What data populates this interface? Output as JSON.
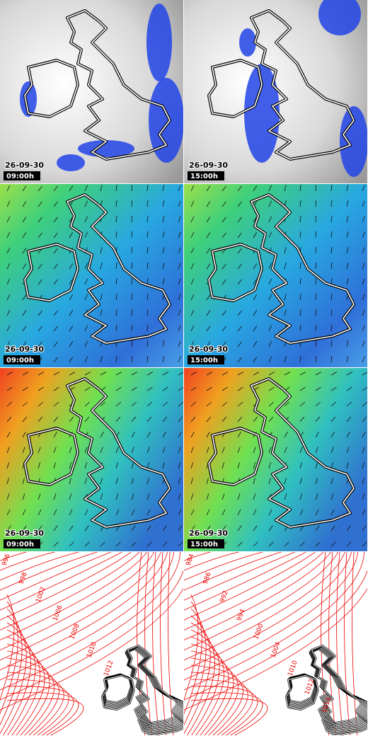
{
  "panels": [
    {
      "date": "26-09-30",
      "time": "09:00h"
    },
    {
      "date": "26-09-30",
      "time": "15:00h"
    },
    {
      "date": "26-09-30",
      "time": "09:00h"
    },
    {
      "date": "26-09-30",
      "time": "15:00h"
    },
    {
      "date": "26-09-30",
      "time": "09:00h"
    },
    {
      "date": "26-09-30",
      "time": "15:00h"
    }
  ],
  "isobar_labels": [
    [
      "996",
      "998",
      "1002",
      "1006",
      "1008",
      "1010",
      "1012"
    ],
    [
      "984",
      "986",
      "992",
      "994",
      "1000",
      "1004",
      "1010",
      "1012",
      "1014"
    ]
  ]
}
